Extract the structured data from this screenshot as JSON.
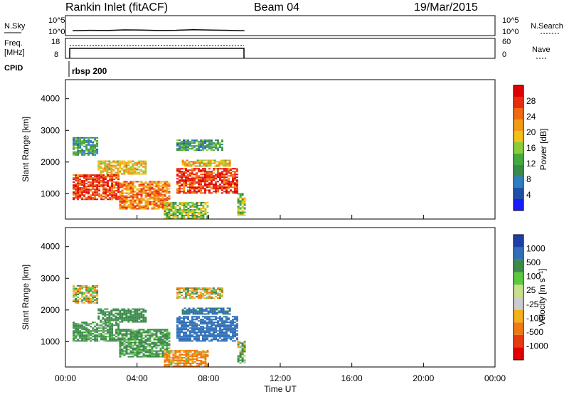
{
  "header": {
    "station": "Rankin Inlet (fitACF)",
    "beam": "Beam 04",
    "date": "19/Mar/2015"
  },
  "side_labels": {
    "nsky": "N.Sky",
    "freq": "Freq.",
    "freq_unit": "[MHz]",
    "cpid": "CPID",
    "nsearch": "N.Search",
    "nave": "Nave"
  },
  "cpid_label": "rbsp 200",
  "colors": {
    "power_scale": [
      "#1a1aff",
      "#1f4fa8",
      "#2f7fc0",
      "#3a8a4a",
      "#44aa3c",
      "#8ccc3a",
      "#f2c01a",
      "#f29a14",
      "#ef6a10",
      "#ea2b10",
      "#e00000"
    ],
    "velocity_scale": [
      "#e00000",
      "#ea3a10",
      "#ef7a12",
      "#f2b01a",
      "#cccccc",
      "#c8e08a",
      "#5cc83c",
      "#3a8a4a",
      "#2f6fb8",
      "#1f3fa8"
    ],
    "grid": "#000000"
  },
  "chart_data": [
    {
      "type": "line",
      "panel": "N.Sky / N.Search",
      "ylabels_left": [
        "10^5",
        "10^0"
      ],
      "ylabels_right": [
        "10^5",
        "10^0"
      ],
      "x": [
        "00:00",
        "01:00",
        "02:00",
        "03:00",
        "04:00",
        "05:00",
        "06:00",
        "07:00",
        "08:00",
        "09:00",
        "10:00"
      ],
      "series": [
        {
          "name": "N.Sky",
          "values": [
            1.6,
            1.8,
            1.7,
            2.0,
            1.9,
            1.7,
            1.8,
            2.1,
            1.9,
            1.8,
            1.6
          ]
        }
      ]
    },
    {
      "type": "line",
      "panel": "Freq. / Nave",
      "ylabels_left": [
        "18",
        "8"
      ],
      "ylabels_right": [
        "60",
        "0"
      ],
      "x": [
        "00:00",
        "10:00"
      ],
      "series": [
        {
          "name": "Freq.",
          "values": [
            12,
            12
          ]
        },
        {
          "name": "Nave",
          "values": [
            40,
            40
          ]
        }
      ]
    },
    {
      "type": "heatmap",
      "panel": "Power",
      "title": "",
      "xlabel": "Time UT",
      "ylabel": "Slant Range [km]",
      "colorbar_label": "Power [dB]",
      "colorbar_ticks": [
        "28",
        "24",
        "20",
        "16",
        "12",
        "8",
        "4"
      ],
      "colorbar_range": [
        0,
        30
      ],
      "ylim": [
        200,
        4600
      ],
      "yticks": [
        "4000",
        "3000",
        "2000",
        "1000"
      ],
      "xticks": [
        "00:00",
        "04:00",
        "08:00",
        "12:00",
        "16:00",
        "20:00",
        "00:00"
      ],
      "data_extent_hours": [
        0.4,
        10.0
      ],
      "bands": [
        {
          "t0": 0.4,
          "t1": 1.8,
          "r0": 2200,
          "r1": 2750,
          "value": 10
        },
        {
          "t0": 1.8,
          "t1": 4.5,
          "r0": 1600,
          "r1": 2050,
          "value": 18
        },
        {
          "t0": 0.4,
          "t1": 3.0,
          "r0": 800,
          "r1": 1600,
          "value": 26
        },
        {
          "t0": 3.0,
          "t1": 5.8,
          "r0": 500,
          "r1": 1400,
          "value": 22
        },
        {
          "t0": 6.5,
          "t1": 9.2,
          "r0": 1850,
          "r1": 2050,
          "value": 18
        },
        {
          "t0": 6.2,
          "t1": 8.8,
          "r0": 2350,
          "r1": 2700,
          "value": 10
        },
        {
          "t0": 6.2,
          "t1": 9.6,
          "r0": 1000,
          "r1": 1800,
          "value": 26
        },
        {
          "t0": 5.5,
          "t1": 8.0,
          "r0": 200,
          "r1": 700,
          "value": 14
        },
        {
          "t0": 9.6,
          "t1": 10.0,
          "r0": 300,
          "r1": 1000,
          "value": 14
        }
      ]
    },
    {
      "type": "heatmap",
      "panel": "Velocity",
      "xlabel": "Time UT",
      "ylabel": "Slant Range [km]",
      "colorbar_label": "Velocity [m s^-1]",
      "colorbar_ticks": [
        "1000",
        "500",
        "100",
        "25",
        "-25",
        "-100",
        "-500",
        "-1000"
      ],
      "ylim": [
        200,
        4600
      ],
      "yticks": [
        "4000",
        "3000",
        "2000",
        "1000"
      ],
      "xticks": [
        "00:00",
        "04:00",
        "08:00",
        "12:00",
        "16:00",
        "20:00",
        "00:00"
      ],
      "bands": [
        {
          "t0": 0.4,
          "t1": 1.8,
          "r0": 2200,
          "r1": 2750,
          "value": 0
        },
        {
          "t0": 1.8,
          "t1": 4.5,
          "r0": 1600,
          "r1": 2050,
          "value": 300
        },
        {
          "t0": 0.4,
          "t1": 3.0,
          "r0": 1000,
          "r1": 1600,
          "value": 200
        },
        {
          "t0": 3.0,
          "t1": 5.8,
          "r0": 500,
          "r1": 1400,
          "value": 200
        },
        {
          "t0": 6.5,
          "t1": 9.2,
          "r0": 1850,
          "r1": 2050,
          "value": 600
        },
        {
          "t0": 6.2,
          "t1": 8.8,
          "r0": 2350,
          "r1": 2700,
          "value": 0
        },
        {
          "t0": 6.2,
          "t1": 9.6,
          "r0": 1000,
          "r1": 1800,
          "value": 800
        },
        {
          "t0": 5.5,
          "t1": 8.0,
          "r0": 200,
          "r1": 700,
          "value": -150
        },
        {
          "t0": 9.6,
          "t1": 10.0,
          "r0": 300,
          "r1": 1000,
          "value": 60
        }
      ]
    }
  ],
  "time_axis_label": "Time UT"
}
